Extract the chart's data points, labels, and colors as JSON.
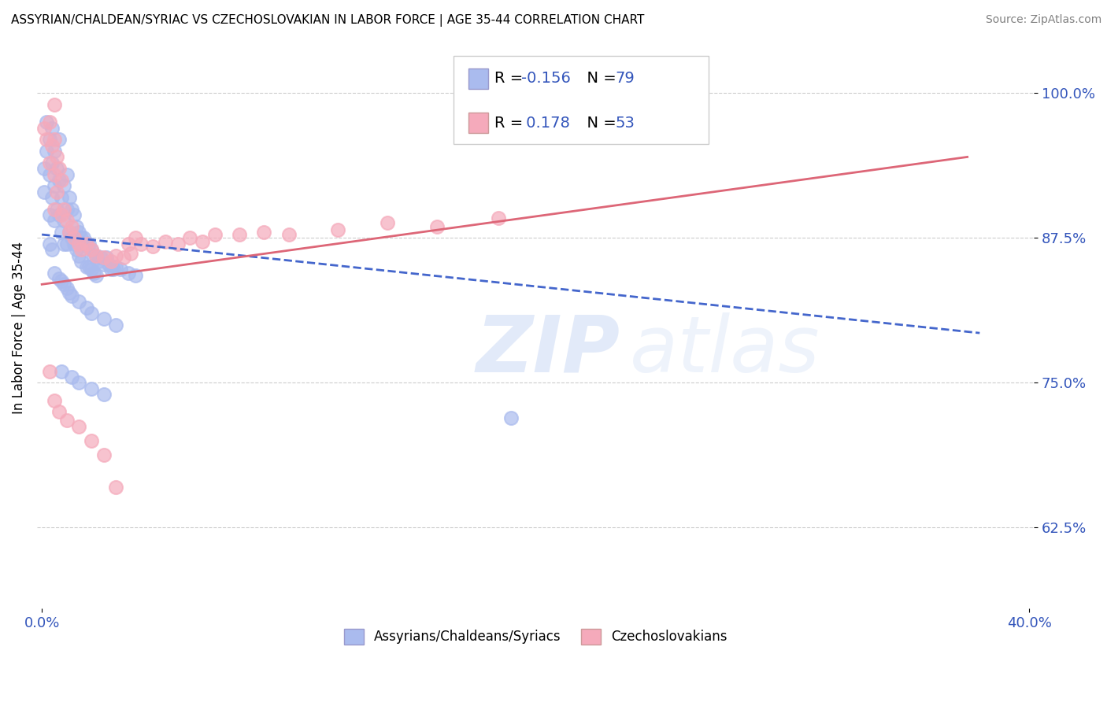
{
  "title": "ASSYRIAN/CHALDEAN/SYRIAC VS CZECHOSLOVAKIAN IN LABOR FORCE | AGE 35-44 CORRELATION CHART",
  "source": "Source: ZipAtlas.com",
  "ylabel": "In Labor Force | Age 35-44",
  "xlim": [
    -0.002,
    0.402
  ],
  "ylim": [
    0.555,
    1.04
  ],
  "xticks": [
    0.0,
    0.4
  ],
  "xticklabels": [
    "0.0%",
    "40.0%"
  ],
  "yticks": [
    0.625,
    0.75,
    0.875,
    1.0
  ],
  "yticklabels": [
    "62.5%",
    "75.0%",
    "87.5%",
    "100.0%"
  ],
  "blue_color": "#aabbee",
  "pink_color": "#f5aabb",
  "blue_line_color": "#4466cc",
  "pink_line_color": "#dd6677",
  "legend_r_color": "#3355bb",
  "blue_line_x": [
    0.0,
    0.38
  ],
  "blue_line_y": [
    0.878,
    0.793
  ],
  "pink_line_x": [
    0.0,
    0.375
  ],
  "pink_line_y": [
    0.835,
    0.945
  ],
  "blue_scatter": [
    [
      0.001,
      0.935
    ],
    [
      0.001,
      0.915
    ],
    [
      0.002,
      0.975
    ],
    [
      0.002,
      0.95
    ],
    [
      0.003,
      0.96
    ],
    [
      0.003,
      0.93
    ],
    [
      0.003,
      0.895
    ],
    [
      0.004,
      0.97
    ],
    [
      0.004,
      0.94
    ],
    [
      0.004,
      0.91
    ],
    [
      0.005,
      0.95
    ],
    [
      0.005,
      0.92
    ],
    [
      0.005,
      0.89
    ],
    [
      0.006,
      0.935
    ],
    [
      0.006,
      0.9
    ],
    [
      0.007,
      0.96
    ],
    [
      0.007,
      0.925
    ],
    [
      0.007,
      0.895
    ],
    [
      0.008,
      0.91
    ],
    [
      0.008,
      0.88
    ],
    [
      0.009,
      0.92
    ],
    [
      0.009,
      0.89
    ],
    [
      0.009,
      0.87
    ],
    [
      0.01,
      0.93
    ],
    [
      0.01,
      0.9
    ],
    [
      0.01,
      0.87
    ],
    [
      0.011,
      0.91
    ],
    [
      0.011,
      0.88
    ],
    [
      0.012,
      0.9
    ],
    [
      0.012,
      0.875
    ],
    [
      0.013,
      0.895
    ],
    [
      0.013,
      0.87
    ],
    [
      0.014,
      0.885
    ],
    [
      0.014,
      0.865
    ],
    [
      0.015,
      0.88
    ],
    [
      0.015,
      0.86
    ],
    [
      0.016,
      0.875
    ],
    [
      0.016,
      0.855
    ],
    [
      0.017,
      0.875
    ],
    [
      0.018,
      0.87
    ],
    [
      0.018,
      0.85
    ],
    [
      0.019,
      0.87
    ],
    [
      0.019,
      0.85
    ],
    [
      0.02,
      0.865
    ],
    [
      0.02,
      0.848
    ],
    [
      0.021,
      0.86
    ],
    [
      0.021,
      0.845
    ],
    [
      0.022,
      0.86
    ],
    [
      0.022,
      0.843
    ],
    [
      0.023,
      0.855
    ],
    [
      0.024,
      0.858
    ],
    [
      0.025,
      0.852
    ],
    [
      0.026,
      0.858
    ],
    [
      0.027,
      0.852
    ],
    [
      0.028,
      0.848
    ],
    [
      0.029,
      0.848
    ],
    [
      0.03,
      0.85
    ],
    [
      0.032,
      0.848
    ],
    [
      0.035,
      0.845
    ],
    [
      0.038,
      0.843
    ],
    [
      0.005,
      0.845
    ],
    [
      0.007,
      0.84
    ],
    [
      0.008,
      0.838
    ],
    [
      0.009,
      0.835
    ],
    [
      0.01,
      0.832
    ],
    [
      0.011,
      0.828
    ],
    [
      0.012,
      0.825
    ],
    [
      0.015,
      0.82
    ],
    [
      0.018,
      0.815
    ],
    [
      0.02,
      0.81
    ],
    [
      0.025,
      0.805
    ],
    [
      0.03,
      0.8
    ],
    [
      0.008,
      0.76
    ],
    [
      0.012,
      0.755
    ],
    [
      0.015,
      0.75
    ],
    [
      0.02,
      0.745
    ],
    [
      0.025,
      0.74
    ],
    [
      0.19,
      0.72
    ],
    [
      0.003,
      0.87
    ],
    [
      0.004,
      0.865
    ]
  ],
  "pink_scatter": [
    [
      0.001,
      0.97
    ],
    [
      0.002,
      0.96
    ],
    [
      0.003,
      0.975
    ],
    [
      0.003,
      0.94
    ],
    [
      0.004,
      0.955
    ],
    [
      0.005,
      0.96
    ],
    [
      0.005,
      0.93
    ],
    [
      0.005,
      0.9
    ],
    [
      0.006,
      0.945
    ],
    [
      0.006,
      0.915
    ],
    [
      0.007,
      0.935
    ],
    [
      0.008,
      0.925
    ],
    [
      0.008,
      0.895
    ],
    [
      0.009,
      0.9
    ],
    [
      0.01,
      0.89
    ],
    [
      0.011,
      0.88
    ],
    [
      0.012,
      0.885
    ],
    [
      0.013,
      0.875
    ],
    [
      0.015,
      0.87
    ],
    [
      0.016,
      0.865
    ],
    [
      0.018,
      0.87
    ],
    [
      0.02,
      0.865
    ],
    [
      0.022,
      0.86
    ],
    [
      0.025,
      0.858
    ],
    [
      0.028,
      0.855
    ],
    [
      0.03,
      0.86
    ],
    [
      0.033,
      0.858
    ],
    [
      0.036,
      0.862
    ],
    [
      0.04,
      0.87
    ],
    [
      0.045,
      0.868
    ],
    [
      0.05,
      0.872
    ],
    [
      0.055,
      0.87
    ],
    [
      0.06,
      0.875
    ],
    [
      0.065,
      0.872
    ],
    [
      0.07,
      0.878
    ],
    [
      0.08,
      0.878
    ],
    [
      0.09,
      0.88
    ],
    [
      0.1,
      0.878
    ],
    [
      0.12,
      0.882
    ],
    [
      0.14,
      0.888
    ],
    [
      0.16,
      0.885
    ],
    [
      0.185,
      0.892
    ],
    [
      0.035,
      0.87
    ],
    [
      0.038,
      0.875
    ],
    [
      0.003,
      0.76
    ],
    [
      0.005,
      0.735
    ],
    [
      0.007,
      0.725
    ],
    [
      0.01,
      0.718
    ],
    [
      0.015,
      0.712
    ],
    [
      0.02,
      0.7
    ],
    [
      0.025,
      0.688
    ],
    [
      0.03,
      0.66
    ],
    [
      0.005,
      0.99
    ]
  ]
}
